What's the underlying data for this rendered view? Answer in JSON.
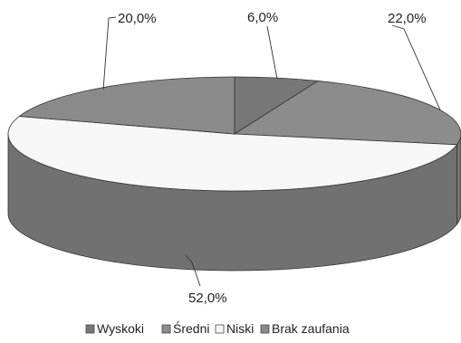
{
  "chart_data": {
    "type": "pie",
    "style": "3d",
    "categories": [
      "Wyskoki",
      "Średni",
      "Niski",
      "Brak zaufania"
    ],
    "values": [
      6.0,
      22.0,
      52.0,
      20.0
    ],
    "value_labels": [
      "6,0%",
      "22,0%",
      "52,0%",
      "20,0%"
    ],
    "colors": {
      "Wyskoki": "#777777",
      "Średni": "#8c8c8c",
      "Niski": "#f7f7f7",
      "Brak zaufania": "#8a8a8a"
    },
    "legend_position": "bottom",
    "title": ""
  }
}
